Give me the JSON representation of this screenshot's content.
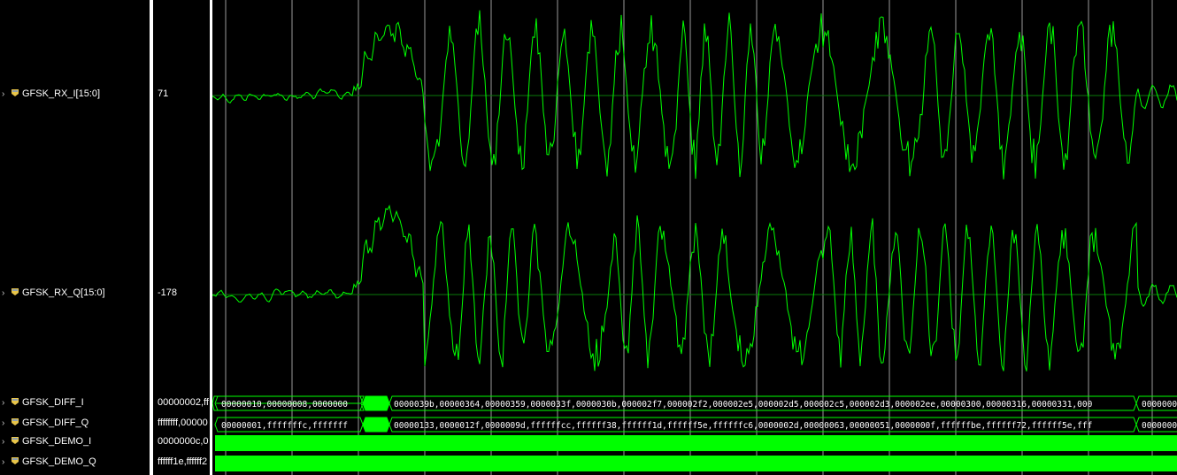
{
  "signals": [
    {
      "name": "GFSK_RX_I[15:0]",
      "value": "71",
      "icon": "analog-bus-icon"
    },
    {
      "name": "GFSK_RX_Q[15:0]",
      "value": "-178",
      "icon": "analog-bus-icon"
    },
    {
      "name": "GFSK_DIFF_I",
      "value": "00000002,ff",
      "icon": "bus-icon"
    },
    {
      "name": "GFSK_DIFF_Q",
      "value": "ffffffff,00000",
      "icon": "bus-icon"
    },
    {
      "name": "GFSK_DEMO_I",
      "value": "0000000c,0",
      "icon": "bus-icon"
    },
    {
      "name": "GFSK_DEMO_Q",
      "value": "ffffff1e,ffffff2",
      "icon": "bus-icon"
    }
  ],
  "bus_segments": {
    "diff_i": [
      "00000010,00000008,0000000",
      "0000039b,00000364,00000359,0000033f,0000030b,000002f7,000002f2,000002e5,000002d5,000002c5,000002d3,000002ee,00000300,00000316,00000331,000",
      "0000000"
    ],
    "diff_q": [
      "00000001,fffffffc,fffffff",
      "00000133,0000012f,0000009d,ffffffcc,ffffff38,ffffff1d,ffffff5e,ffffffc6,0000002d,00000063,00000051,0000000f,ffffffbe,ffffff72,ffffff5e,fff",
      "0000000"
    ]
  },
  "colors": {
    "waveform": "#00ff00",
    "background": "#000000",
    "text": "#ffffff",
    "icon": "#e8c54a"
  }
}
